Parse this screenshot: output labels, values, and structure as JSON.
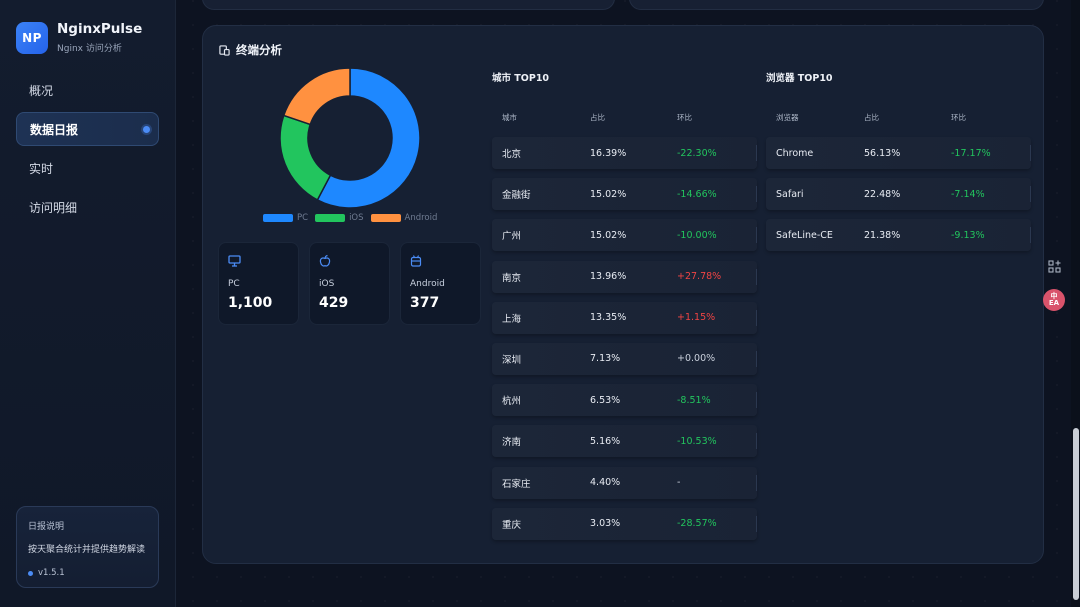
{
  "brand": {
    "logo": "NP",
    "name": "NginxPulse",
    "subtitle": "Nginx 访问分析"
  },
  "nav": {
    "items": [
      {
        "label": "概况",
        "active": false
      },
      {
        "label": "数据日报",
        "active": true
      },
      {
        "label": "实时",
        "active": false
      },
      {
        "label": "访问明细",
        "active": false
      }
    ]
  },
  "info": {
    "title": "日报说明",
    "desc": "按天聚合统计并提供趋势解读",
    "version": "v1.5.1"
  },
  "panel": {
    "title": "终端分析",
    "title_icon": "device-icon",
    "legend": [
      {
        "label": "PC",
        "color": "#1e88ff"
      },
      {
        "label": "iOS",
        "color": "#22c55e"
      },
      {
        "label": "Android",
        "color": "#ff9140"
      }
    ],
    "stats": [
      {
        "label": "PC",
        "value": "1,100",
        "icon": "monitor-icon"
      },
      {
        "label": "iOS",
        "value": "429",
        "icon": "apple-icon"
      },
      {
        "label": "Android",
        "value": "377",
        "icon": "android-icon"
      }
    ]
  },
  "chart_data": {
    "type": "pie",
    "categories": [
      "PC",
      "iOS",
      "Android"
    ],
    "values": [
      1100,
      429,
      377
    ],
    "colors": [
      "#1e88ff",
      "#22c55e",
      "#ff9140"
    ],
    "donut": true,
    "legend_position": "bottom"
  },
  "city_table": {
    "title": "城市 TOP10",
    "headers": [
      "城市",
      "占比",
      "环比"
    ],
    "rows": [
      {
        "name": "北京",
        "share": "16.39%",
        "change": "-22.30%",
        "trend": "down"
      },
      {
        "name": "金融街",
        "share": "15.02%",
        "change": "-14.66%",
        "trend": "down"
      },
      {
        "name": "广州",
        "share": "15.02%",
        "change": "-10.00%",
        "trend": "down"
      },
      {
        "name": "南京",
        "share": "13.96%",
        "change": "+27.78%",
        "trend": "up"
      },
      {
        "name": "上海",
        "share": "13.35%",
        "change": "+1.15%",
        "trend": "up"
      },
      {
        "name": "深圳",
        "share": "7.13%",
        "change": "+0.00%",
        "trend": "flat"
      },
      {
        "name": "杭州",
        "share": "6.53%",
        "change": "-8.51%",
        "trend": "down"
      },
      {
        "name": "济南",
        "share": "5.16%",
        "change": "-10.53%",
        "trend": "down"
      },
      {
        "name": "石家庄",
        "share": "4.40%",
        "change": "-",
        "trend": "flat"
      },
      {
        "name": "重庆",
        "share": "3.03%",
        "change": "-28.57%",
        "trend": "down"
      }
    ]
  },
  "browser_table": {
    "title": "浏览器 TOP10",
    "headers": [
      "浏览器",
      "占比",
      "环比"
    ],
    "rows": [
      {
        "name": "Chrome",
        "share": "56.13%",
        "change": "-17.17%",
        "trend": "down"
      },
      {
        "name": "Safari",
        "share": "22.48%",
        "change": "-7.14%",
        "trend": "down"
      },
      {
        "name": "SafeLine-CE",
        "share": "21.38%",
        "change": "-9.13%",
        "trend": "down"
      }
    ]
  },
  "widgets": {
    "translate_label_top": "中",
    "translate_label_bottom": "EA"
  }
}
